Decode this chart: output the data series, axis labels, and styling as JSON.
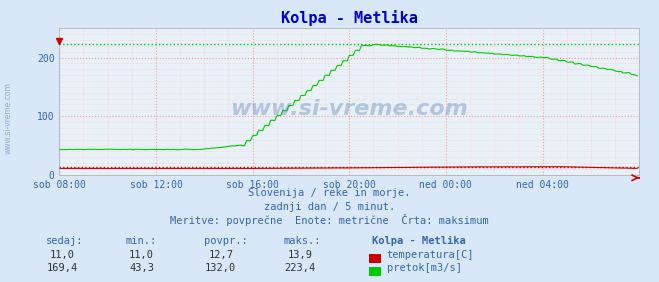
{
  "title": "Kolpa - Metlika",
  "title_color": "#0000cc",
  "bg_color": "#d8e8f8",
  "plot_bg_color": "#e8f0f8",
  "grid_color_major": "#ff9999",
  "grid_color_minor": "#ffcccc",
  "xlabel_color": "#3366aa",
  "text_color": "#3366aa",
  "watermark": "www.si-vreme.com",
  "subtitle1": "Slovenija / reke in morje.",
  "subtitle2": "zadnji dan / 5 minut.",
  "subtitle3": "Meritve: povprečne  Enote: metrične  Črta: maksimum",
  "xlabels": [
    "sob 08:00",
    "sob 12:00",
    "sob 16:00",
    "sob 20:00",
    "ned 00:00",
    "ned 04:00"
  ],
  "ylim": [
    0,
    250
  ],
  "yticks": [
    0,
    100,
    200
  ],
  "xmin": 0,
  "xmax": 288,
  "xticks_pos": [
    0,
    48,
    96,
    144,
    192,
    240
  ],
  "temp_color": "#cc0000",
  "flow_color": "#00cc00",
  "temp_max": 13.9,
  "flow_max": 223.4,
  "temp_sedaj": 11.0,
  "temp_min": 11.0,
  "temp_povpr": 12.7,
  "temp_maks": 13.9,
  "flow_sedaj": 169.4,
  "flow_min": 43.3,
  "flow_povpr": 132.0,
  "flow_maks": 223.4,
  "table_header": [
    "sedaj:",
    "min.:",
    "povpr.:",
    "maks.:",
    "Kolpa - Metlika"
  ],
  "legend_temp": "temperatura[C]",
  "legend_flow": "pretok[m3/s]",
  "arrow_color": "#cc0000"
}
